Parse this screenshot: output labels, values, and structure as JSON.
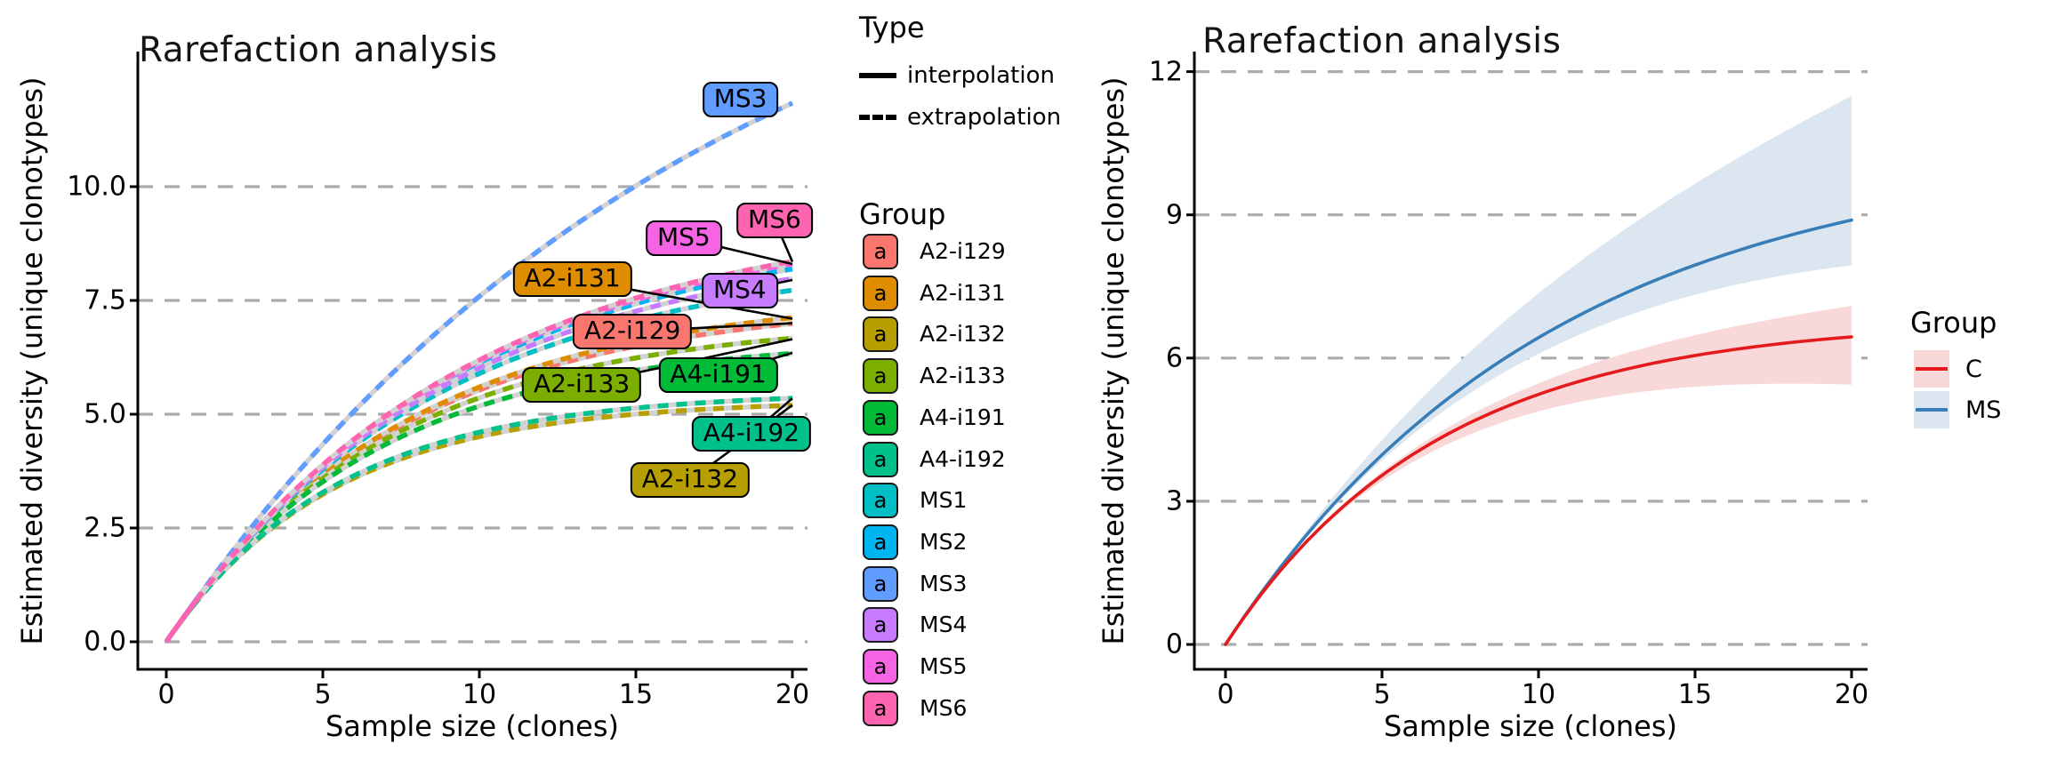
{
  "figure": {
    "background": "#FFFFFF",
    "grid_color": "#ABABAB",
    "axis_color": "#000000",
    "underlay_color": "#D2D2D2"
  },
  "left_plot": {
    "title": "Rarefaction analysis",
    "xlabel": "Sample size (clones)",
    "ylabel": "Estimated diversity (unique clonotypes)",
    "x_tick_labels": [
      "0",
      "5",
      "10",
      "15",
      "20"
    ],
    "y_tick_labels": [
      "0.0",
      "2.5",
      "5.0",
      "7.5",
      "10.0"
    ]
  },
  "type_legend": {
    "title": "Type",
    "items": [
      {
        "label": "interpolation",
        "linetype": "solid"
      },
      {
        "label": "extrapolation",
        "linetype": "dashed"
      }
    ]
  },
  "group_legend": {
    "title": "Group",
    "key_letter": "a",
    "items": [
      {
        "label": "A2-i129",
        "color": "#F8766D"
      },
      {
        "label": "A2-i131",
        "color": "#DE8C00"
      },
      {
        "label": "A2-i132",
        "color": "#B79F00"
      },
      {
        "label": "A2-i133",
        "color": "#7CAE00"
      },
      {
        "label": "A4-i191",
        "color": "#00BA38"
      },
      {
        "label": "A4-i192",
        "color": "#00C08B"
      },
      {
        "label": "MS1",
        "color": "#00BFC4"
      },
      {
        "label": "MS2",
        "color": "#00B4F0"
      },
      {
        "label": "MS3",
        "color": "#619CFF"
      },
      {
        "label": "MS4",
        "color": "#C77CFF"
      },
      {
        "label": "MS5",
        "color": "#F564E3"
      },
      {
        "label": "MS6",
        "color": "#FF64B0"
      }
    ]
  },
  "right_plot": {
    "title": "Rarefaction analysis",
    "xlabel": "Sample size (clones)",
    "ylabel": "Estimated diversity (unique clonotypes)",
    "x_tick_labels": [
      "0",
      "5",
      "10",
      "15",
      "20"
    ],
    "y_tick_labels": [
      "0",
      "3",
      "6",
      "9",
      "12"
    ],
    "legend": {
      "title": "Group",
      "items": [
        {
          "label": "C",
          "line_color": "#E41A1C",
          "ribbon_color": "#F9D8D9"
        },
        {
          "label": "MS",
          "line_color": "#377EB8",
          "ribbon_color": "#DCE6F0"
        }
      ]
    }
  },
  "chart_data": [
    {
      "type": "line",
      "panel": "left",
      "title": "Rarefaction analysis",
      "xlabel": "Sample size (clones)",
      "ylabel": "Estimated diversity (unique clonotypes)",
      "xlim": [
        0,
        20
      ],
      "ylim": [
        0,
        12.6
      ],
      "x_ticks": [
        0,
        5,
        10,
        15,
        20
      ],
      "y_ticks": [
        0,
        2.5,
        5,
        7.5,
        10
      ],
      "grid": {
        "horizontal": true,
        "style": "dashed",
        "color": "#ABABAB"
      },
      "linetype_semantics": {
        "solid": "interpolation",
        "dashed": "extrapolation"
      },
      "interpolation_solid_until_x": 1,
      "curve_model": "diversity(x) = (1/rate)*(1-exp(-rate*x)); slope 1 at origin",
      "series": [
        {
          "name": "A2-i129",
          "color": "#F8766D",
          "rate": 0.133,
          "diversity_at_20": 7.0
        },
        {
          "name": "A2-i131",
          "color": "#DE8C00",
          "rate": 0.13,
          "diversity_at_20": 7.1
        },
        {
          "name": "A2-i132",
          "color": "#B79F00",
          "rate": 0.188,
          "diversity_at_20": 5.2
        },
        {
          "name": "A2-i133",
          "color": "#7CAE00",
          "rate": 0.141,
          "diversity_at_20": 6.65
        },
        {
          "name": "A4-i191",
          "color": "#00BA38",
          "rate": 0.15,
          "diversity_at_20": 6.35
        },
        {
          "name": "A4-i192",
          "color": "#00C08B",
          "rate": 0.182,
          "diversity_at_20": 5.35
        },
        {
          "name": "MS1",
          "color": "#00BFC4",
          "rate": 0.117,
          "diversity_at_20": 7.7
        },
        {
          "name": "MS2",
          "color": "#00B4F0",
          "rate": 0.108,
          "diversity_at_20": 8.15
        },
        {
          "name": "MS3",
          "color": "#619CFF",
          "rate": 0.058,
          "diversity_at_20": 11.8
        },
        {
          "name": "MS4",
          "color": "#C77CFF",
          "rate": 0.112,
          "diversity_at_20": 7.95
        },
        {
          "name": "MS5",
          "color": "#F564E3",
          "rate": 0.106,
          "diversity_at_20": 8.3
        },
        {
          "name": "MS6",
          "color": "#FF64B0",
          "rate": 0.105,
          "diversity_at_20": 8.35
        }
      ],
      "labels": [
        {
          "name": "MS3",
          "x": 18.34,
          "y": 11.91,
          "leader": false
        },
        {
          "name": "MS6",
          "x": 19.43,
          "y": 9.26,
          "leader": true
        },
        {
          "name": "MS5",
          "x": 16.53,
          "y": 8.87,
          "leader": true
        },
        {
          "name": "A2-i131",
          "x": 12.97,
          "y": 7.97,
          "leader": true
        },
        {
          "name": "MS4",
          "x": 18.32,
          "y": 7.71,
          "leader": true
        },
        {
          "name": "A2-i129",
          "x": 14.89,
          "y": 6.82,
          "leader": true
        },
        {
          "name": "A4-i191",
          "x": 17.63,
          "y": 5.85,
          "leader": true
        },
        {
          "name": "A2-i133",
          "x": 13.27,
          "y": 5.65,
          "leader": true
        },
        {
          "name": "A4-i192",
          "x": 18.69,
          "y": 4.57,
          "leader": true
        },
        {
          "name": "A2-i132",
          "x": 16.73,
          "y": 3.55,
          "leader": true
        }
      ]
    },
    {
      "type": "line",
      "panel": "right",
      "title": "Rarefaction analysis",
      "xlabel": "Sample size (clones)",
      "ylabel": "Estimated diversity (unique clonotypes)",
      "xlim": [
        0,
        20
      ],
      "ylim": [
        0,
        12
      ],
      "x_ticks": [
        0,
        5,
        10,
        15,
        20
      ],
      "y_ticks": [
        0,
        3,
        6,
        9,
        12
      ],
      "grid": {
        "horizontal": true,
        "style": "dashed",
        "color": "#ABABAB"
      },
      "curve_model": "diversity(x) = (1/rate)*(1-exp(-rate*x)); slope 1 at origin",
      "series": [
        {
          "name": "C",
          "color": "#E41A1C",
          "ribbon_color": "#F9D8D9",
          "rate": 0.147,
          "diversity_at_20": 6.45,
          "ci_lower_at_20": 5.45,
          "ci_upper_at_20": 7.1
        },
        {
          "name": "MS",
          "color": "#377EB8",
          "ribbon_color": "#DCE6F0",
          "rate": 0.096,
          "diversity_at_20": 8.85,
          "ci_lower_at_20": 7.9,
          "ci_upper_at_20": 11.45
        }
      ]
    }
  ]
}
